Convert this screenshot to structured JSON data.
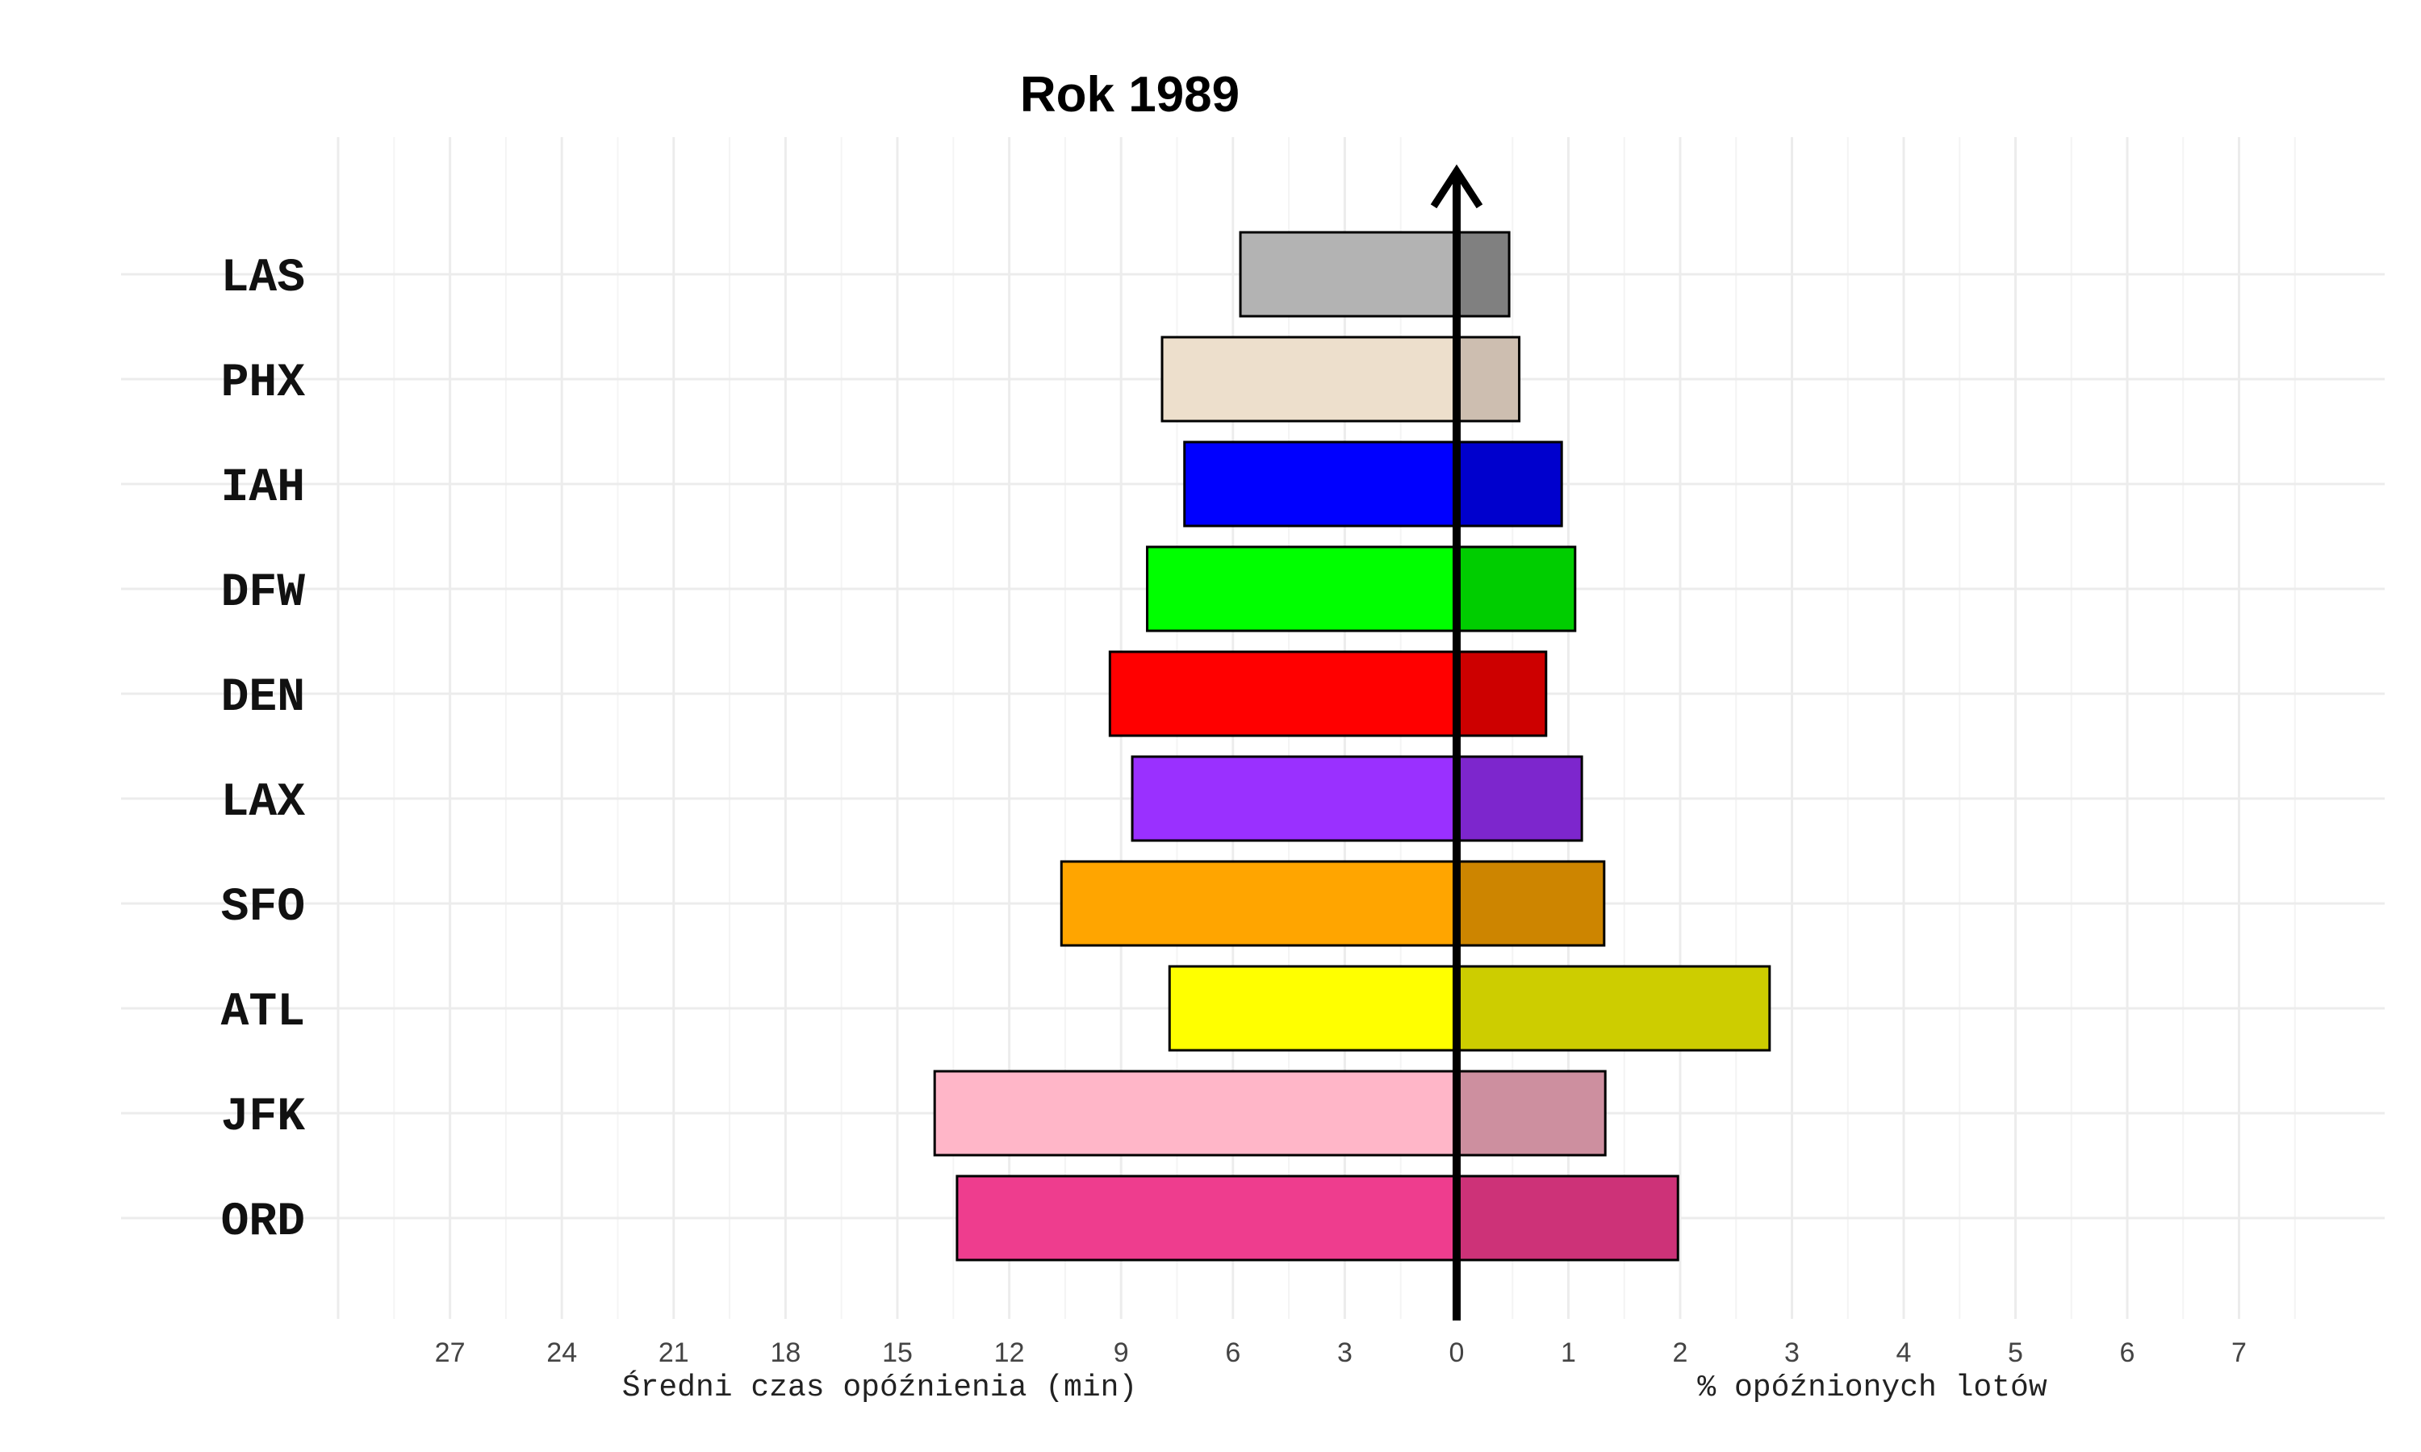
{
  "chart_data": {
    "type": "bar",
    "orientation": "horizontal",
    "layout": "diverging",
    "title": "Rok 1989",
    "categories": [
      "LAS",
      "PHX",
      "IAH",
      "DFW",
      "DEN",
      "LAX",
      "SFO",
      "ATL",
      "JFK",
      "ORD"
    ],
    "left_axis": {
      "label": "Średni czas opóźnienia (min)",
      "ticks": [
        "27",
        "24",
        "21",
        "18",
        "15",
        "12",
        "9",
        "6",
        "3",
        "0"
      ],
      "max": 27
    },
    "right_axis": {
      "label": "% opóźnionych lotów",
      "ticks": [
        "1",
        "2",
        "3",
        "4",
        "5",
        "6",
        "7"
      ],
      "max": 7
    },
    "series": [
      {
        "name": "Średni czas opóźnienia (min)",
        "side": "left",
        "values": [
          5.8,
          7.9,
          7.3,
          8.3,
          9.3,
          8.7,
          10.6,
          7.7,
          14.0,
          13.4
        ],
        "colors": [
          "#b3b3b3",
          "#eddfcc",
          "#0000ff",
          "#00ff00",
          "#ff0000",
          "#9a30ff",
          "#ffa500",
          "#ffff00",
          "#ffb6c8",
          "#ee3d8e"
        ]
      },
      {
        "name": "% opóźnionych lotów",
        "side": "right",
        "values": [
          0.47,
          0.56,
          0.94,
          1.06,
          0.8,
          1.12,
          1.32,
          2.8,
          1.33,
          1.98
        ],
        "colors": [
          "#808080",
          "#cdbeb0",
          "#0000cd",
          "#00cd00",
          "#cd0000",
          "#7d26cd",
          "#cd8500",
          "#cdcd00",
          "#cd8f9f",
          "#cd3278"
        ]
      }
    ],
    "grid": true
  }
}
